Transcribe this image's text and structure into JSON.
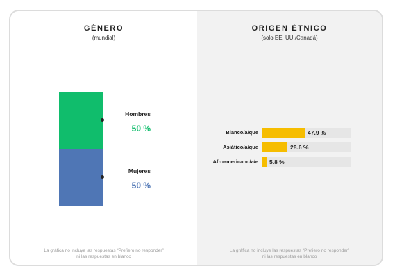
{
  "left_panel": {
    "title": "GÉNERO",
    "subtitle": "(mundial)",
    "footnote_line1": "La gráfica no incluye las respuestas “Prefiero no responder”",
    "footnote_line2": "ni las respuestas en blanco"
  },
  "right_panel": {
    "title": "ORIGEN ÉTNICO",
    "subtitle": "(solo EE. UU./Canadá)",
    "footnote_line1": "La gráfica no incluye las respuestas “Prefiero no responder”",
    "footnote_line2": "ni las respuestas en blanco"
  },
  "colors": {
    "hombres": "#10bd6c",
    "mujeres": "#4f76b5",
    "ethnicity_bar": "#f6bd00",
    "track": "#e6e6e6",
    "right_background": "#f2f2f2"
  },
  "chart_data": [
    {
      "type": "bar",
      "title": "GÉNERO",
      "subtitle": "(mundial)",
      "stacked": true,
      "categories": [
        "Hombres",
        "Mujeres"
      ],
      "values": [
        50,
        50
      ],
      "value_labels": [
        "50 %",
        "50 %"
      ],
      "colors": [
        "#10bd6c",
        "#4f76b5"
      ],
      "ylim": [
        0,
        100
      ]
    },
    {
      "type": "bar",
      "orientation": "horizontal",
      "title": "ORIGEN ÉTNICO",
      "subtitle": "(solo EE. UU./Canadá)",
      "categories": [
        "Blanco/a/que",
        "Asiático/a/que",
        "Afroamericano/a/e"
      ],
      "values": [
        47.9,
        28.6,
        5.8
      ],
      "value_labels": [
        "47.9 %",
        "28.6 %",
        "5.8 %"
      ],
      "xlim": [
        0,
        100
      ]
    }
  ]
}
